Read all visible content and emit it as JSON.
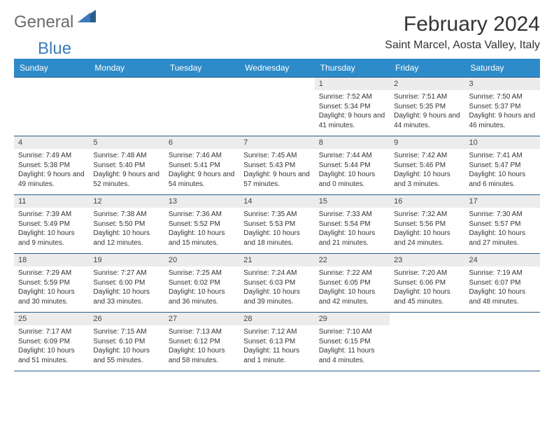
{
  "logo": {
    "general": "General",
    "blue": "Blue"
  },
  "title": "February 2024",
  "location": "Saint Marcel, Aosta Valley, Italy",
  "colors": {
    "header_bg": "#2e8bc9",
    "header_text": "#ffffff",
    "daynum_bg": "#ececec",
    "border": "#2b5c8a",
    "logo_gray": "#6b6b6b",
    "logo_blue": "#3b7bbf"
  },
  "day_headers": [
    "Sunday",
    "Monday",
    "Tuesday",
    "Wednesday",
    "Thursday",
    "Friday",
    "Saturday"
  ],
  "weeks": [
    [
      null,
      null,
      null,
      null,
      {
        "n": "1",
        "sr": "7:52 AM",
        "ss": "5:34 PM",
        "dl": "9 hours and 41 minutes."
      },
      {
        "n": "2",
        "sr": "7:51 AM",
        "ss": "5:35 PM",
        "dl": "9 hours and 44 minutes."
      },
      {
        "n": "3",
        "sr": "7:50 AM",
        "ss": "5:37 PM",
        "dl": "9 hours and 46 minutes."
      }
    ],
    [
      {
        "n": "4",
        "sr": "7:49 AM",
        "ss": "5:38 PM",
        "dl": "9 hours and 49 minutes."
      },
      {
        "n": "5",
        "sr": "7:48 AM",
        "ss": "5:40 PM",
        "dl": "9 hours and 52 minutes."
      },
      {
        "n": "6",
        "sr": "7:46 AM",
        "ss": "5:41 PM",
        "dl": "9 hours and 54 minutes."
      },
      {
        "n": "7",
        "sr": "7:45 AM",
        "ss": "5:43 PM",
        "dl": "9 hours and 57 minutes."
      },
      {
        "n": "8",
        "sr": "7:44 AM",
        "ss": "5:44 PM",
        "dl": "10 hours and 0 minutes."
      },
      {
        "n": "9",
        "sr": "7:42 AM",
        "ss": "5:46 PM",
        "dl": "10 hours and 3 minutes."
      },
      {
        "n": "10",
        "sr": "7:41 AM",
        "ss": "5:47 PM",
        "dl": "10 hours and 6 minutes."
      }
    ],
    [
      {
        "n": "11",
        "sr": "7:39 AM",
        "ss": "5:49 PM",
        "dl": "10 hours and 9 minutes."
      },
      {
        "n": "12",
        "sr": "7:38 AM",
        "ss": "5:50 PM",
        "dl": "10 hours and 12 minutes."
      },
      {
        "n": "13",
        "sr": "7:36 AM",
        "ss": "5:52 PM",
        "dl": "10 hours and 15 minutes."
      },
      {
        "n": "14",
        "sr": "7:35 AM",
        "ss": "5:53 PM",
        "dl": "10 hours and 18 minutes."
      },
      {
        "n": "15",
        "sr": "7:33 AM",
        "ss": "5:54 PM",
        "dl": "10 hours and 21 minutes."
      },
      {
        "n": "16",
        "sr": "7:32 AM",
        "ss": "5:56 PM",
        "dl": "10 hours and 24 minutes."
      },
      {
        "n": "17",
        "sr": "7:30 AM",
        "ss": "5:57 PM",
        "dl": "10 hours and 27 minutes."
      }
    ],
    [
      {
        "n": "18",
        "sr": "7:29 AM",
        "ss": "5:59 PM",
        "dl": "10 hours and 30 minutes."
      },
      {
        "n": "19",
        "sr": "7:27 AM",
        "ss": "6:00 PM",
        "dl": "10 hours and 33 minutes."
      },
      {
        "n": "20",
        "sr": "7:25 AM",
        "ss": "6:02 PM",
        "dl": "10 hours and 36 minutes."
      },
      {
        "n": "21",
        "sr": "7:24 AM",
        "ss": "6:03 PM",
        "dl": "10 hours and 39 minutes."
      },
      {
        "n": "22",
        "sr": "7:22 AM",
        "ss": "6:05 PM",
        "dl": "10 hours and 42 minutes."
      },
      {
        "n": "23",
        "sr": "7:20 AM",
        "ss": "6:06 PM",
        "dl": "10 hours and 45 minutes."
      },
      {
        "n": "24",
        "sr": "7:19 AM",
        "ss": "6:07 PM",
        "dl": "10 hours and 48 minutes."
      }
    ],
    [
      {
        "n": "25",
        "sr": "7:17 AM",
        "ss": "6:09 PM",
        "dl": "10 hours and 51 minutes."
      },
      {
        "n": "26",
        "sr": "7:15 AM",
        "ss": "6:10 PM",
        "dl": "10 hours and 55 minutes."
      },
      {
        "n": "27",
        "sr": "7:13 AM",
        "ss": "6:12 PM",
        "dl": "10 hours and 58 minutes."
      },
      {
        "n": "28",
        "sr": "7:12 AM",
        "ss": "6:13 PM",
        "dl": "11 hours and 1 minute."
      },
      {
        "n": "29",
        "sr": "7:10 AM",
        "ss": "6:15 PM",
        "dl": "11 hours and 4 minutes."
      },
      null,
      null
    ]
  ],
  "labels": {
    "sunrise": "Sunrise:",
    "sunset": "Sunset:",
    "daylight": "Daylight:"
  }
}
